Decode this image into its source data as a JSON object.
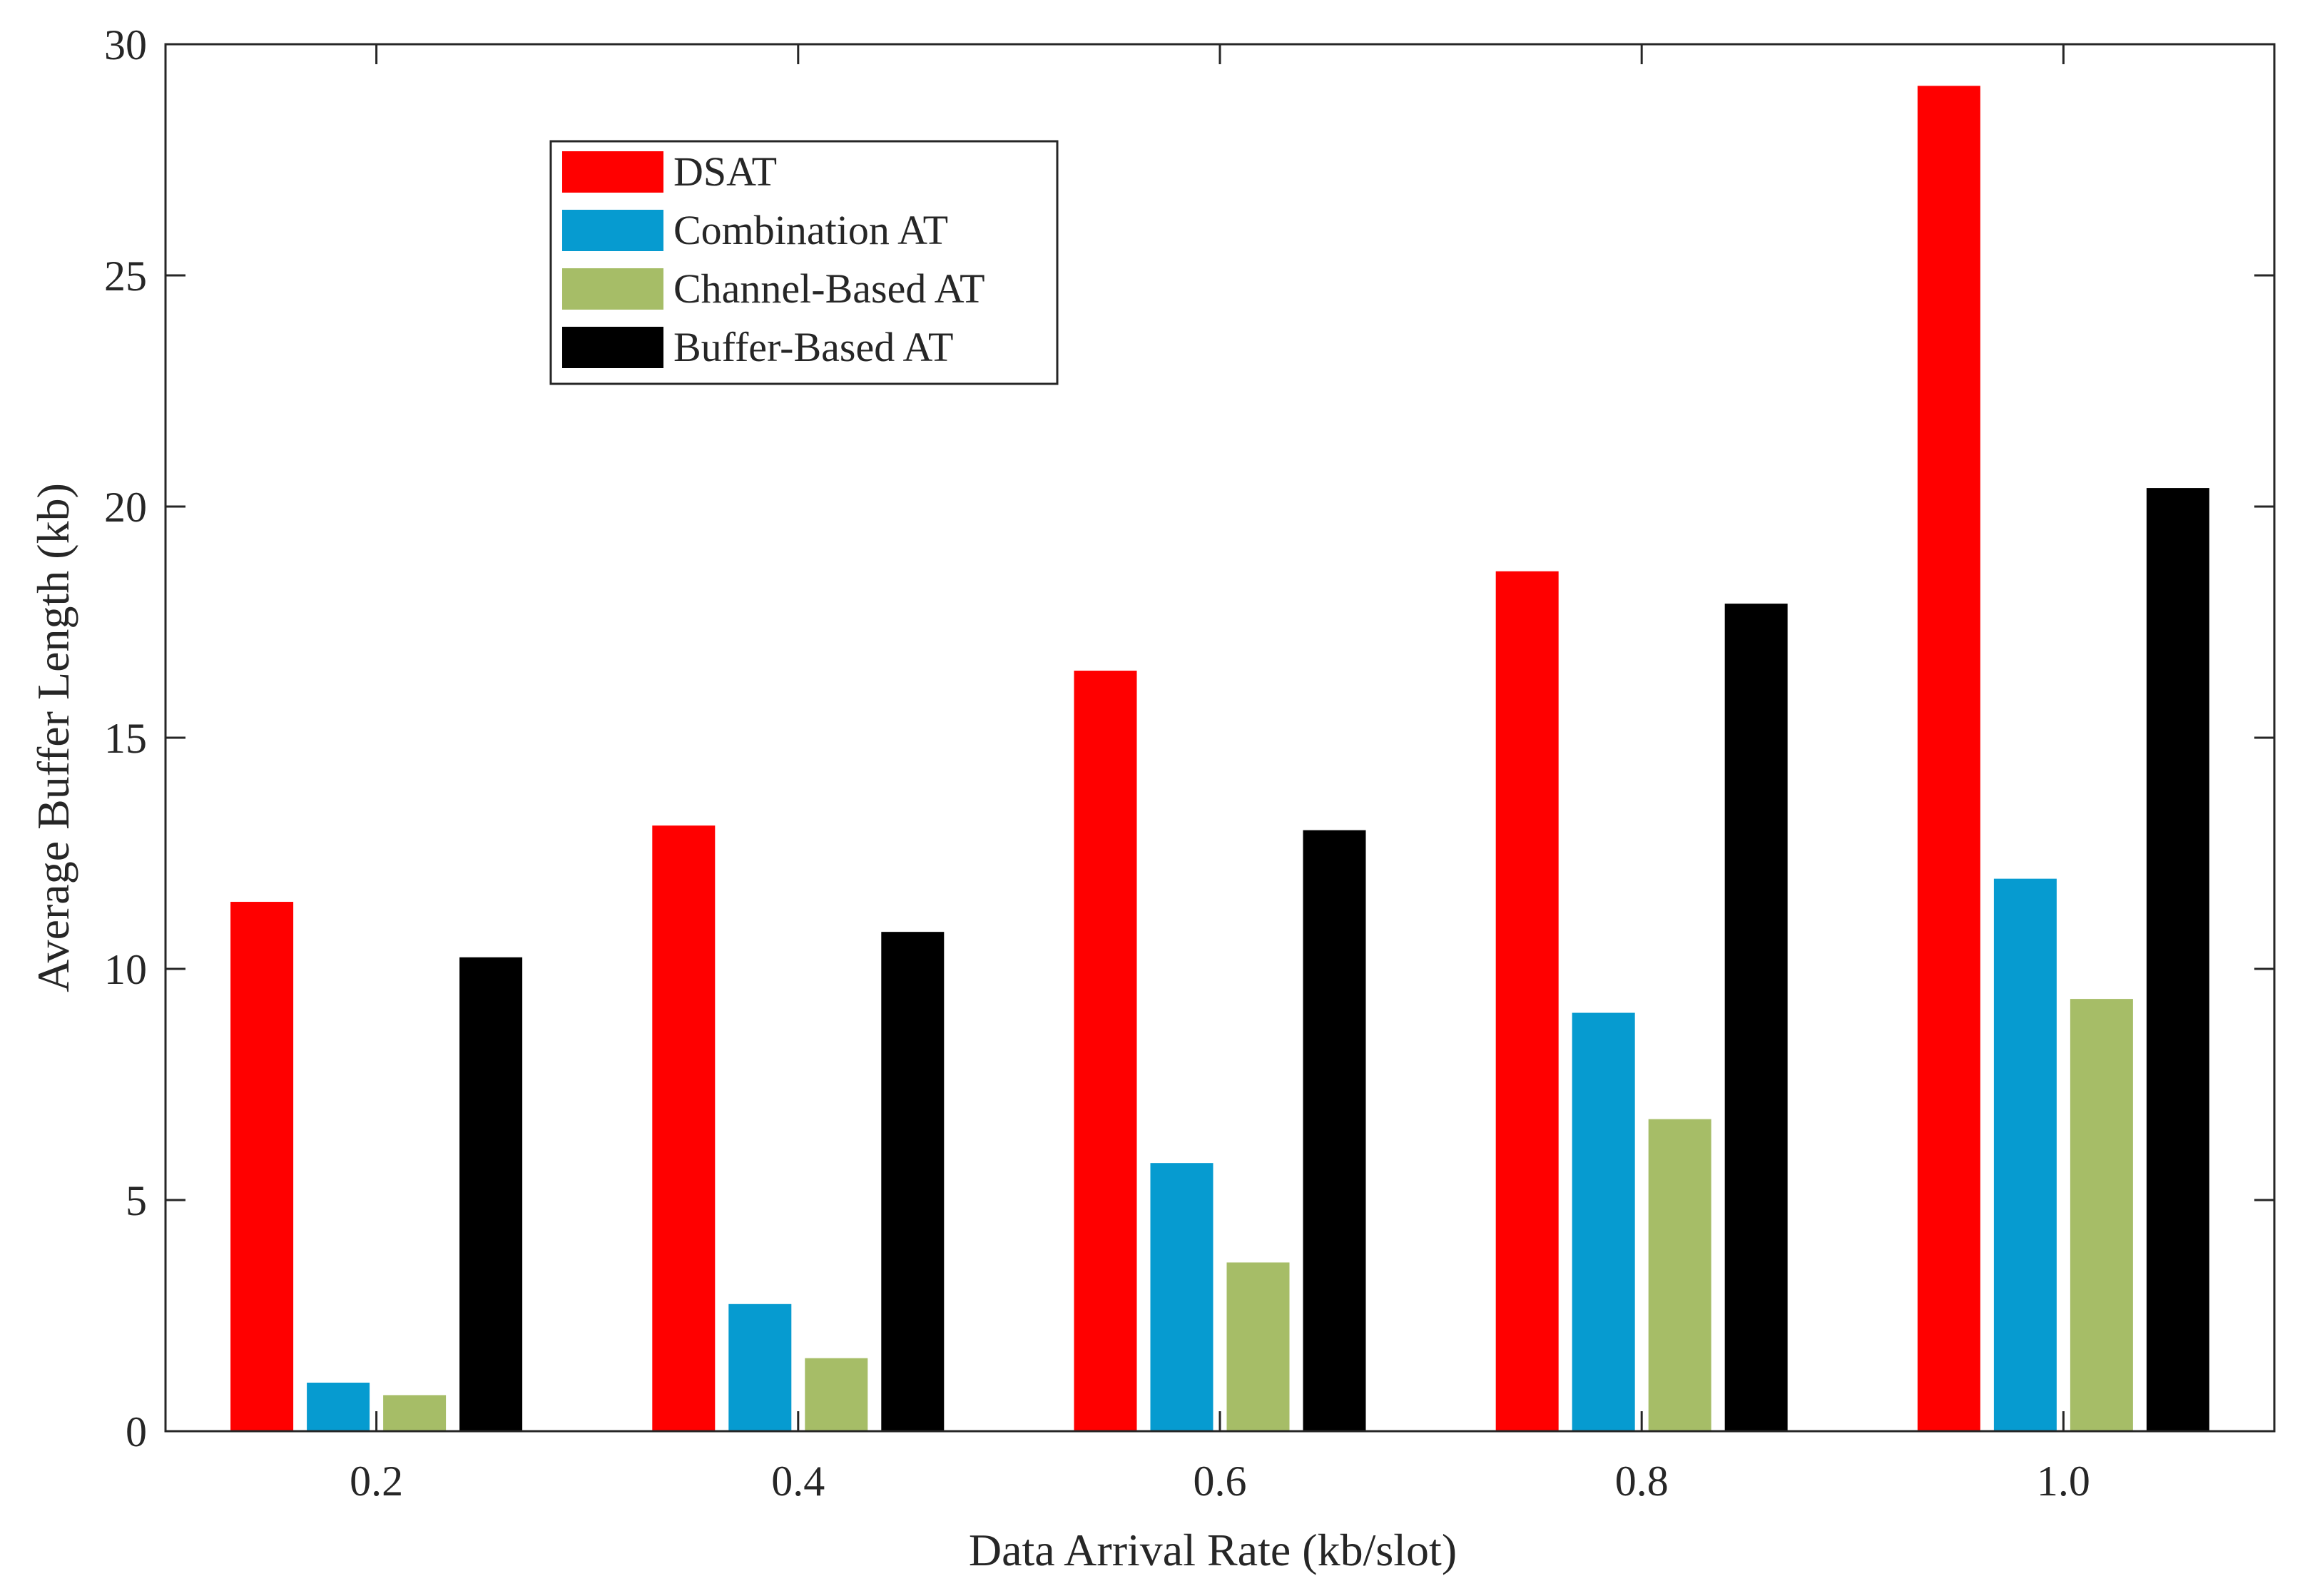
{
  "chart_data": {
    "type": "bar",
    "title": "",
    "xlabel": "Data Arrival Rate (kb/slot)",
    "ylabel": "Average Buffer Length (kb)",
    "categories": [
      "0.2",
      "0.4",
      "0.6",
      "0.8",
      "1.0"
    ],
    "ylim": [
      0,
      30
    ],
    "yticks": [
      "0",
      "5",
      "10",
      "15",
      "20",
      "25",
      "30"
    ],
    "grid": false,
    "legend_position": "top-left",
    "series": [
      {
        "name": "DSAT",
        "color": "#ff0000",
        "values": [
          11.45,
          13.1,
          16.45,
          18.6,
          29.1
        ]
      },
      {
        "name": "Combination AT",
        "color": "#069bd0",
        "values": [
          1.05,
          2.75,
          5.8,
          9.05,
          11.95
        ]
      },
      {
        "name": "Channel-Based AT",
        "color": "#a6bd67",
        "values": [
          0.78,
          1.58,
          3.65,
          6.75,
          9.35
        ]
      },
      {
        "name": "Buffer-Based AT",
        "color": "#000000",
        "values": [
          10.25,
          10.8,
          13.0,
          17.9,
          20.4
        ]
      }
    ]
  }
}
